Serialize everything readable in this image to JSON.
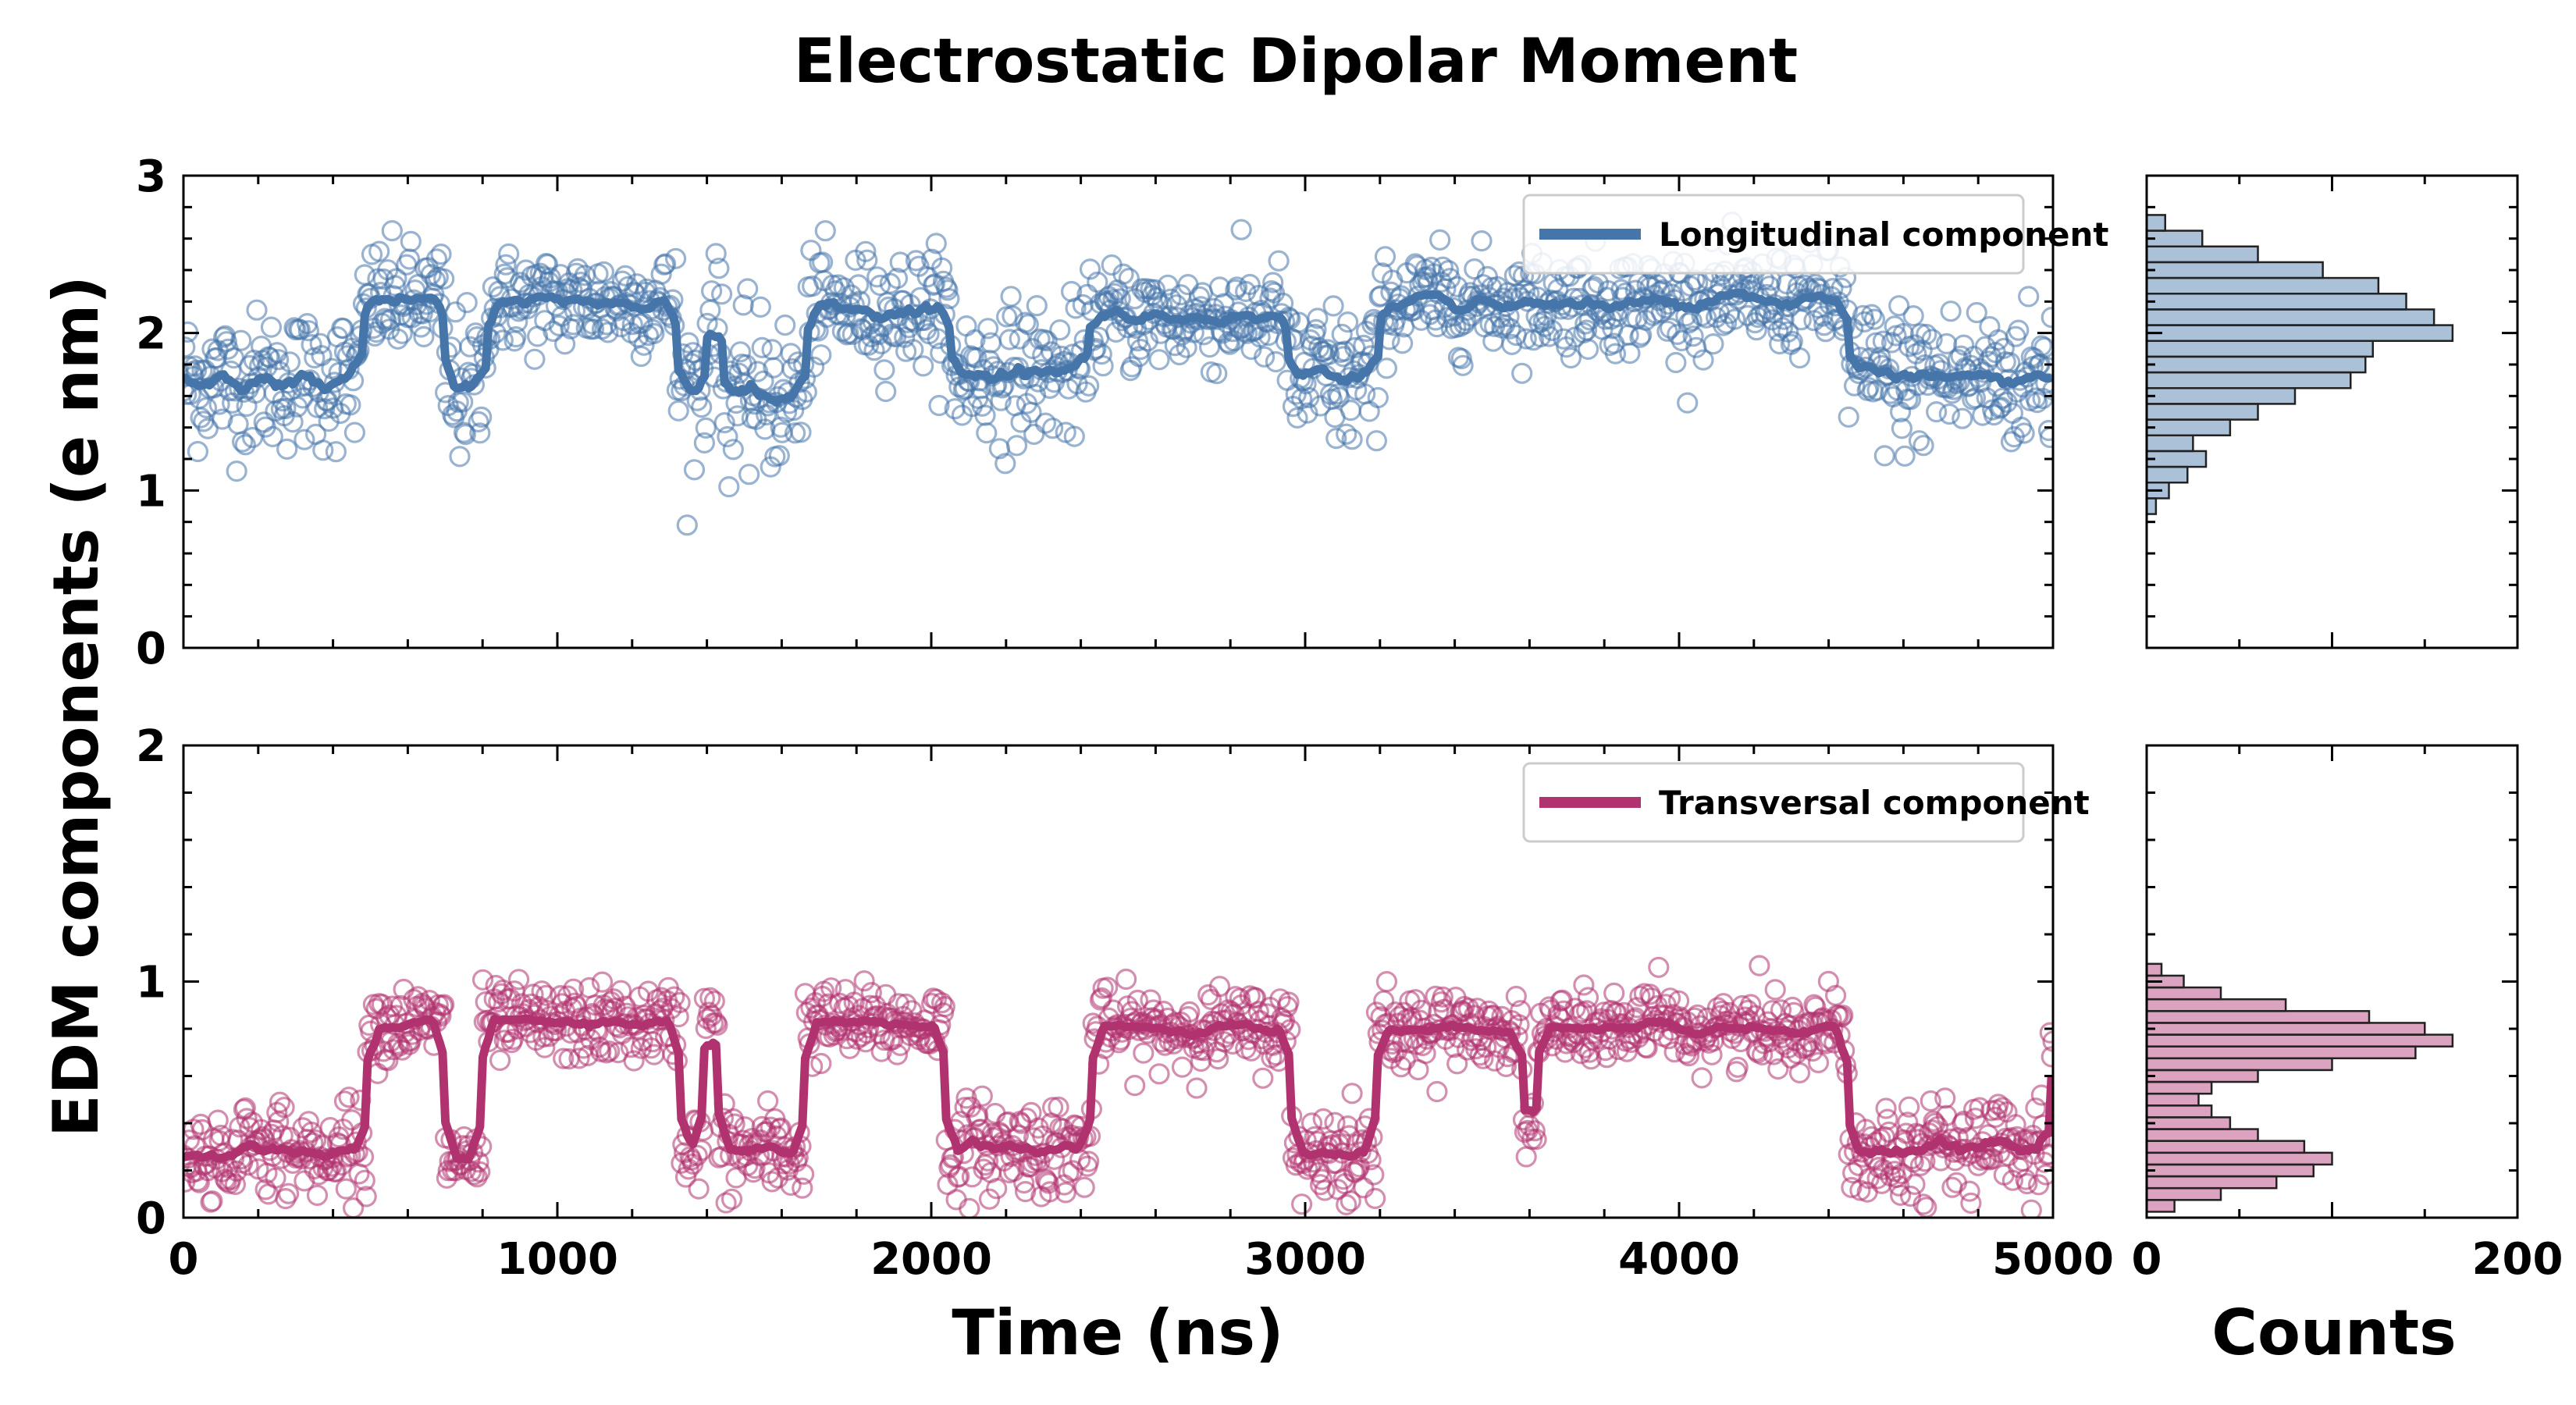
{
  "chart_data": {
    "type": "scatter",
    "title": "Electrostatic Dipolar Moment",
    "ylabel": "EDM components (e nm)",
    "xlabel": "Time (ns)",
    "hist_xlabel": "Counts",
    "xlim": [
      0,
      5000
    ],
    "xticks": [
      "0",
      "1000",
      "2000",
      "3000",
      "4000",
      "5000"
    ],
    "hist_xlim": [
      0,
      200
    ],
    "hist_xticks": [
      "0",
      "200"
    ],
    "series": [
      {
        "name": "Longitudinal component",
        "color": "#4575a9",
        "ylim": [
          0,
          3
        ],
        "yticks": [
          "0",
          "1",
          "2",
          "3"
        ],
        "state_segments": [
          {
            "t0": 0,
            "t1": 480,
            "mean": 1.7,
            "spread": 0.22
          },
          {
            "t0": 480,
            "t1": 700,
            "mean": 2.2,
            "spread": 0.18
          },
          {
            "t0": 700,
            "t1": 810,
            "mean": 1.65,
            "spread": 0.25
          },
          {
            "t0": 810,
            "t1": 1320,
            "mean": 2.2,
            "spread": 0.16
          },
          {
            "t0": 1320,
            "t1": 1400,
            "mean": 1.65,
            "spread": 0.25
          },
          {
            "t0": 1400,
            "t1": 1440,
            "mean": 2.1,
            "spread": 0.18
          },
          {
            "t0": 1440,
            "t1": 1670,
            "mean": 1.6,
            "spread": 0.25
          },
          {
            "t0": 1670,
            "t1": 2050,
            "mean": 2.15,
            "spread": 0.18
          },
          {
            "t0": 2050,
            "t1": 2420,
            "mean": 1.75,
            "spread": 0.22
          },
          {
            "t0": 2420,
            "t1": 2950,
            "mean": 2.1,
            "spread": 0.17
          },
          {
            "t0": 2950,
            "t1": 3200,
            "mean": 1.7,
            "spread": 0.25
          },
          {
            "t0": 3200,
            "t1": 4450,
            "mean": 2.2,
            "spread": 0.16
          },
          {
            "t0": 4450,
            "t1": 5000,
            "mean": 1.72,
            "spread": 0.24
          }
        ],
        "histogram": {
          "bins": [
            0.9,
            1.0,
            1.1,
            1.2,
            1.3,
            1.4,
            1.5,
            1.6,
            1.7,
            1.8,
            1.9,
            2.0,
            2.1,
            2.2,
            2.3,
            2.4,
            2.5,
            2.6,
            2.7
          ],
          "counts": [
            5,
            12,
            22,
            32,
            25,
            45,
            60,
            80,
            110,
            118,
            122,
            165,
            155,
            140,
            125,
            95,
            60,
            30,
            10
          ]
        }
      },
      {
        "name": "Transversal component",
        "color": "#b03370",
        "ylim": [
          0,
          2
        ],
        "yticks": [
          "0",
          "1",
          "2"
        ],
        "state_segments": [
          {
            "t0": 0,
            "t1": 490,
            "mean": 0.28,
            "spread": 0.1
          },
          {
            "t0": 490,
            "t1": 700,
            "mean": 0.82,
            "spread": 0.08
          },
          {
            "t0": 700,
            "t1": 800,
            "mean": 0.25,
            "spread": 0.08
          },
          {
            "t0": 800,
            "t1": 1330,
            "mean": 0.82,
            "spread": 0.08
          },
          {
            "t0": 1330,
            "t1": 1390,
            "mean": 0.3,
            "spread": 0.08
          },
          {
            "t0": 1390,
            "t1": 1430,
            "mean": 0.85,
            "spread": 0.08
          },
          {
            "t0": 1430,
            "t1": 1660,
            "mean": 0.28,
            "spread": 0.1
          },
          {
            "t0": 1660,
            "t1": 2040,
            "mean": 0.82,
            "spread": 0.08
          },
          {
            "t0": 2040,
            "t1": 2430,
            "mean": 0.3,
            "spread": 0.1
          },
          {
            "t0": 2430,
            "t1": 2960,
            "mean": 0.8,
            "spread": 0.08
          },
          {
            "t0": 2960,
            "t1": 3190,
            "mean": 0.28,
            "spread": 0.1
          },
          {
            "t0": 3190,
            "t1": 3580,
            "mean": 0.8,
            "spread": 0.08
          },
          {
            "t0": 3580,
            "t1": 3620,
            "mean": 0.35,
            "spread": 0.08
          },
          {
            "t0": 3620,
            "t1": 4450,
            "mean": 0.8,
            "spread": 0.08
          },
          {
            "t0": 4450,
            "t1": 4990,
            "mean": 0.3,
            "spread": 0.1
          },
          {
            "t0": 4990,
            "t1": 5000,
            "mean": 0.8,
            "spread": 0.08
          }
        ],
        "histogram": {
          "bins": [
            0.05,
            0.1,
            0.15,
            0.2,
            0.25,
            0.3,
            0.35,
            0.4,
            0.45,
            0.5,
            0.55,
            0.6,
            0.65,
            0.7,
            0.75,
            0.8,
            0.85,
            0.9,
            0.95,
            1.0,
            1.05
          ],
          "counts": [
            15,
            40,
            70,
            90,
            100,
            85,
            60,
            45,
            35,
            28,
            35,
            60,
            100,
            145,
            165,
            150,
            120,
            75,
            40,
            20,
            8
          ]
        }
      }
    ]
  }
}
